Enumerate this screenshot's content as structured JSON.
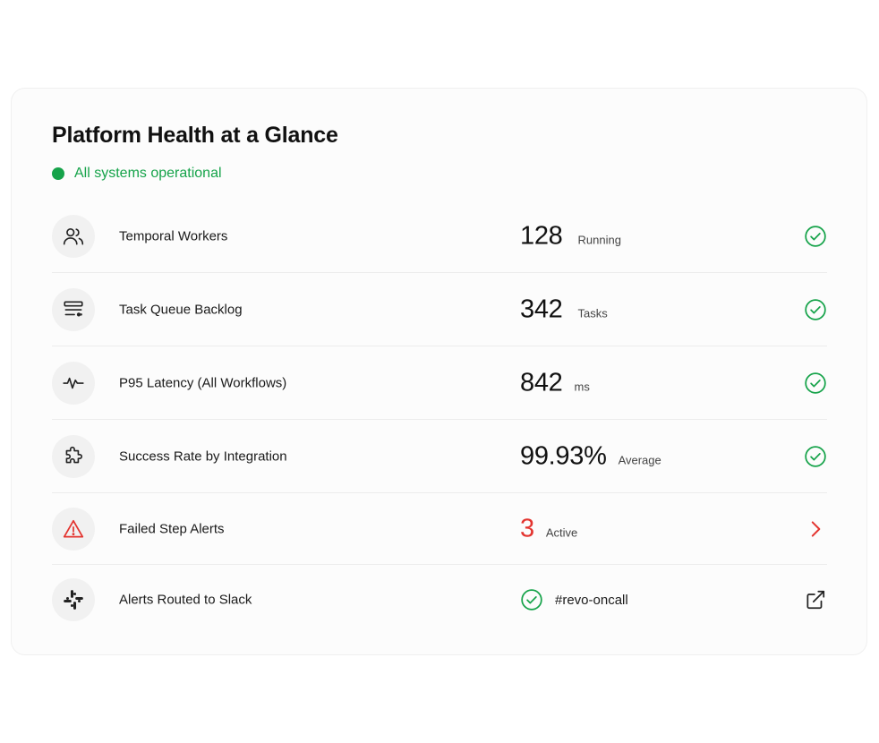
{
  "header": {
    "title": "Platform Health at a Glance",
    "status_text": "All systems operational"
  },
  "colors": {
    "ok": "#16a34a",
    "alert": "#e3342f",
    "icon_bg": "#f1f1f1"
  },
  "rows": [
    {
      "icon": "users-icon",
      "label": "Temporal Workers",
      "value": "128",
      "unit": "Running",
      "status_icon": "check-circle-icon"
    },
    {
      "icon": "queue-list-icon",
      "label": "Task Queue Backlog",
      "value": "342",
      "unit": "Tasks",
      "status_icon": "check-circle-icon"
    },
    {
      "icon": "pulse-icon",
      "label": "P95 Latency (All Workflows)",
      "value": "842",
      "unit": "ms",
      "status_icon": "check-circle-icon"
    },
    {
      "icon": "puzzle-icon",
      "label": "Success Rate by Integration",
      "value": "99.93%",
      "unit": "Average",
      "status_icon": "check-circle-icon"
    },
    {
      "icon": "warning-triangle-icon",
      "label": "Failed Step Alerts",
      "value": "3",
      "unit": "Active",
      "status_icon": "chevron-right-icon"
    },
    {
      "icon": "slack-icon",
      "label": "Alerts Routed to Slack",
      "value": "#revo-oncall",
      "status_icon": "external-link-icon"
    }
  ]
}
